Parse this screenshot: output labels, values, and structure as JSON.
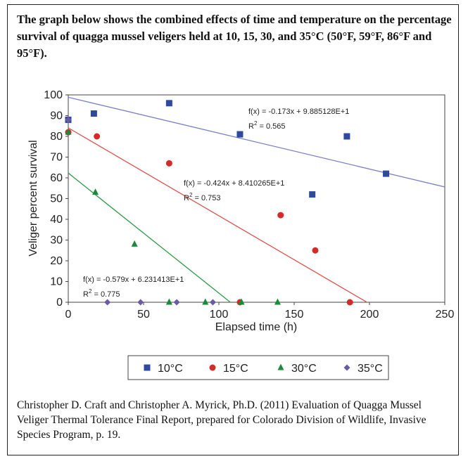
{
  "heading": "The graph below shows the combined effects of time and temperature on the percentage survival of quagga mussel veligers held at 10, 15, 30, and 35°C (50°F, 59°F, 86°F and 95°F).",
  "citation": "Christopher D. Craft and Christopher A. Myrick, Ph.D. (2011) Evaluation of Quagga Mussel Veliger Thermal Tolerance Final Report, prepared for Colorado Division of Wildlife, Invasive Species Program, p. 19.",
  "chart_data": {
    "type": "scatter",
    "title": "",
    "xlabel": "Elapsed time (h)",
    "ylabel": "Veliger percent survival",
    "xlim": [
      0,
      250
    ],
    "ylim": [
      0,
      100
    ],
    "xticks": [
      0,
      50,
      100,
      150,
      200,
      250
    ],
    "yticks": [
      0,
      10,
      20,
      30,
      40,
      50,
      60,
      70,
      80,
      90,
      100
    ],
    "grid": false,
    "legend_position": "bottom",
    "series": [
      {
        "name": "10°C",
        "color": "#2e4a9e",
        "marker": "square",
        "line_color": "#7b7fc4",
        "points": [
          [
            0,
            88
          ],
          [
            17,
            91
          ],
          [
            67,
            96
          ],
          [
            114,
            81
          ],
          [
            162,
            52
          ],
          [
            185,
            80
          ],
          [
            211,
            62
          ]
        ],
        "fit": {
          "slope": -0.173,
          "intercept": 98.85128
        },
        "equation": "f(x) = -0.173x + 9.885128E+1",
        "r2_label": "R",
        "r2_value": " = 0.565"
      },
      {
        "name": "15°C",
        "color": "#d42a2a",
        "marker": "circle",
        "line_color": "#e05050",
        "points": [
          [
            0,
            82
          ],
          [
            19,
            80
          ],
          [
            67,
            67
          ],
          [
            114,
            0
          ],
          [
            141,
            42
          ],
          [
            164,
            25
          ],
          [
            187,
            0
          ]
        ],
        "fit": {
          "slope": -0.424,
          "intercept": 84.10265
        },
        "equation": "f(x) = -0.424x + 8.410265E+1",
        "r2_label": "R",
        "r2_value": " = 0.753"
      },
      {
        "name": "30°C",
        "color": "#1a8a3a",
        "marker": "triangle",
        "line_color": "#2e9a4a",
        "points": [
          [
            0,
            82
          ],
          [
            18,
            53
          ],
          [
            44,
            28
          ],
          [
            67,
            0
          ],
          [
            91,
            0
          ],
          [
            115,
            0
          ],
          [
            139,
            0
          ]
        ],
        "fit": {
          "slope": -0.579,
          "intercept": 62.31413
        },
        "equation": "f(x) = -0.579x + 6.231413E+1",
        "r2_label": "R",
        "r2_value": " = 0.775"
      },
      {
        "name": "35°C",
        "color": "#6a5aa8",
        "marker": "diamond",
        "line_color": "#6a5aa8",
        "points": [
          [
            0,
            88
          ],
          [
            26,
            0
          ],
          [
            48,
            0
          ],
          [
            72,
            0
          ],
          [
            96,
            0
          ]
        ],
        "fit": null
      }
    ]
  }
}
